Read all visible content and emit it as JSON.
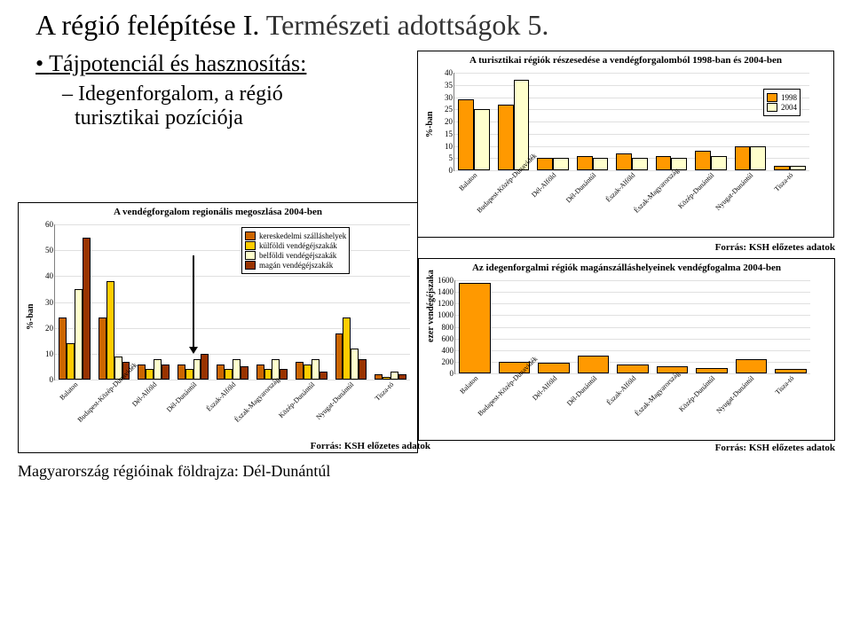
{
  "title_part1": "A régió felépítése I.",
  "title_part2": "Természeti adottságok 5.",
  "bullet": "Tájpotenciál és hasznosítás:",
  "sub1": "Idegenforgalom, a régió",
  "sub2": "turisztikai pozíciója",
  "footer": "Magyarország régióinak földrajza: Dél-Dunántúl",
  "credit": "Forrás: KSH előzetes adatok",
  "regions": [
    "Balaton",
    "Budapest-Közép-Dunavidék",
    "Dél-Alföld",
    "Dél-Dunántúl",
    "Észak-Alföld",
    "Észak-Magyarország",
    "Közép-Dunántúl",
    "Nyugat-Dunántúl",
    "Tisza-tó"
  ],
  "colors": {
    "c1": "#cc6600",
    "c2": "#ffcc00",
    "c3": "#ffffcc",
    "c4": "#993300",
    "orange": "#ff9900",
    "pale": "#ffffcc",
    "bg": "#ffffff"
  },
  "chart1": {
    "title": "A vendégforgalom regionális megoszlása 2004-ben",
    "ylabel": "%-ban",
    "ymax": 60,
    "ytick_step": 10,
    "legend": [
      "kereskedelmi szálláshelyek",
      "külföldi vendégéjszakák",
      "belföldi vendégéjszakák",
      "magán vendégéjszakák"
    ],
    "series_colors": [
      "#cc6600",
      "#ffcc00",
      "#ffffcc",
      "#993300"
    ],
    "data": [
      [
        24,
        14,
        35,
        55
      ],
      [
        24,
        38,
        9,
        7
      ],
      [
        6,
        4,
        8,
        6
      ],
      [
        6,
        4,
        8,
        10
      ],
      [
        6,
        4,
        8,
        5
      ],
      [
        6,
        4,
        8,
        4
      ],
      [
        7,
        6,
        8,
        3
      ],
      [
        18,
        24,
        12,
        8
      ],
      [
        2,
        1,
        3,
        2
      ]
    ]
  },
  "chart2": {
    "title": "A turisztikai régiók részesedése a vendégforgalomból 1998-ban és 2004-ben",
    "ylabel": "%-ban",
    "ymax": 40,
    "ytick_step": 5,
    "legend": [
      "1998",
      "2004"
    ],
    "series_colors": [
      "#ff9900",
      "#ffffcc"
    ],
    "data": [
      [
        29,
        25
      ],
      [
        27,
        37
      ],
      [
        5,
        5
      ],
      [
        6,
        5
      ],
      [
        7,
        5
      ],
      [
        6,
        5
      ],
      [
        8,
        6
      ],
      [
        10,
        10
      ],
      [
        2,
        2
      ]
    ]
  },
  "chart3": {
    "title": "Az idegenforgalmi régiók magánszálláshelyeinek vendégfogalma 2004-ben",
    "ylabel": "ezer vendégéjszaka",
    "ymax": 1600,
    "ytick_step": 200,
    "series_colors": [
      "#ff9900"
    ],
    "data": [
      1550,
      200,
      180,
      300,
      150,
      120,
      90,
      240,
      70
    ]
  }
}
